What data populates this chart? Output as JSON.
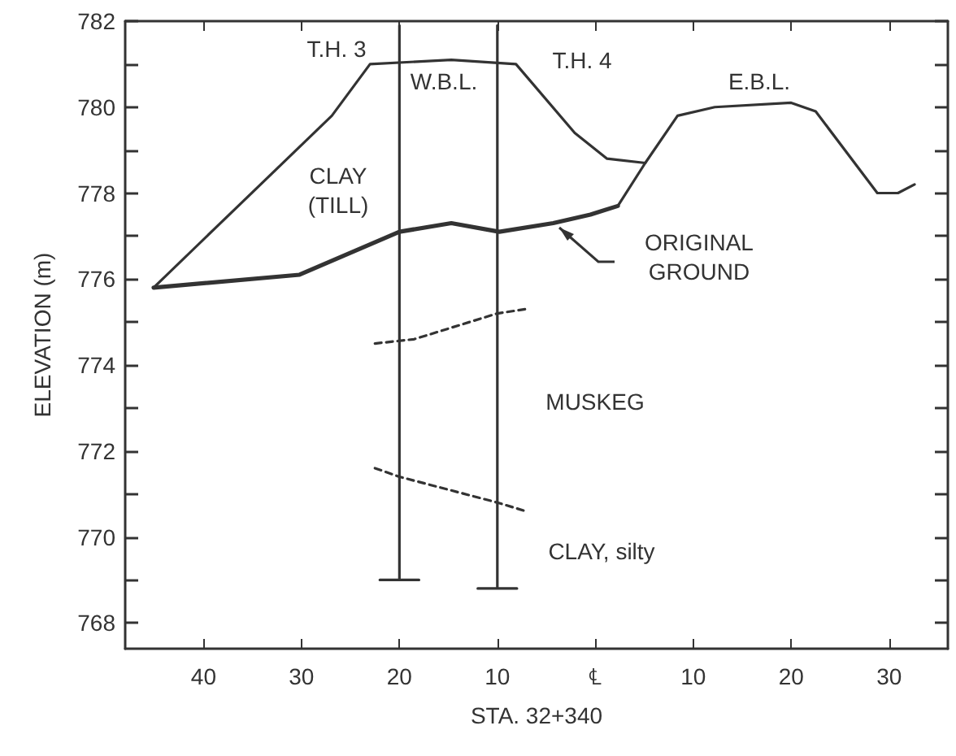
{
  "chart_data": {
    "type": "line",
    "xlabel": "STA. 32+340",
    "ylabel": "ELEVATION (m)",
    "xlim": [
      -48,
      36
    ],
    "ylim": [
      767.4,
      782
    ],
    "xticks": [
      {
        "value": -40,
        "label": "40"
      },
      {
        "value": -30,
        "label": "30"
      },
      {
        "value": -20,
        "label": "20"
      },
      {
        "value": -10,
        "label": "10"
      },
      {
        "value": 0,
        "label": "℄"
      },
      {
        "value": 10,
        "label": "10"
      },
      {
        "value": 20,
        "label": "20"
      },
      {
        "value": 30,
        "label": "30"
      }
    ],
    "yticks": [
      768,
      {
        "value": 769,
        "label": null
      },
      770,
      {
        "value": 771,
        "label": null
      },
      772,
      {
        "value": 773,
        "label": null
      },
      774,
      {
        "value": 775,
        "label": null
      },
      776,
      {
        "value": 777,
        "label": null
      },
      778,
      {
        "value": 779,
        "label": null
      },
      780,
      {
        "value": 781,
        "label": null
      },
      782
    ],
    "grid": false,
    "marker": "none",
    "series": [
      {
        "color": "#333333",
        "x": [
          -45.1,
          -26.9,
          -23.0,
          -14.7,
          -8.1,
          -2.1,
          1.2,
          5.1
        ],
        "values": [
          775.8,
          779.8,
          781.0,
          781.1,
          781.0,
          779.4,
          778.8,
          778.7
        ]
      },
      {
        "color": "#333333",
        "x": [
          2.3,
          5.1,
          8.4,
          12.2,
          20.0,
          22.5,
          28.8,
          30.9,
          32.6
        ],
        "values": [
          777.7,
          778.7,
          779.8,
          780.0,
          780.1,
          779.9,
          778.0,
          778.0,
          778.2
        ]
      },
      {
        "color": "#333333",
        "x": [
          -45.1,
          -30.2,
          -20.0,
          -14.7,
          -9.8,
          -4.3,
          -0.5,
          2.3
        ],
        "values": [
          775.8,
          776.1,
          777.1,
          777.3,
          777.1,
          777.3,
          777.5,
          777.7
        ]
      },
      {
        "color": "#333333",
        "x": [
          -20.0,
          -20.0,
          -22.0,
          -18.0
        ],
        "values": [
          781.9,
          769.0,
          769.0,
          769.0
        ]
      },
      {
        "color": "#333333",
        "x": [
          -10.0,
          -10.0,
          -12.0,
          -8.0
        ],
        "values": [
          781.9,
          768.8,
          768.8,
          768.8
        ]
      },
      {
        "color": "#333333",
        "line_style": "dashed",
        "x": [
          -22.5,
          -18.5,
          -10.0,
          -7.1
        ],
        "values": [
          774.5,
          774.6,
          775.2,
          775.3
        ]
      },
      {
        "color": "#333333",
        "line_style": "dashed",
        "x": [
          -22.5,
          -20.0,
          -10.0,
          -7.1
        ],
        "values": [
          771.6,
          771.4,
          770.8,
          770.6
        ]
      }
    ],
    "annotations": [
      "T.H. 3",
      "W.B.L.",
      "T.H. 4",
      "E.B.L.",
      "CLAY\n(TILL)",
      "ORIGINAL\nGROUND",
      "MUSKEG",
      "CLAY, silty"
    ]
  }
}
